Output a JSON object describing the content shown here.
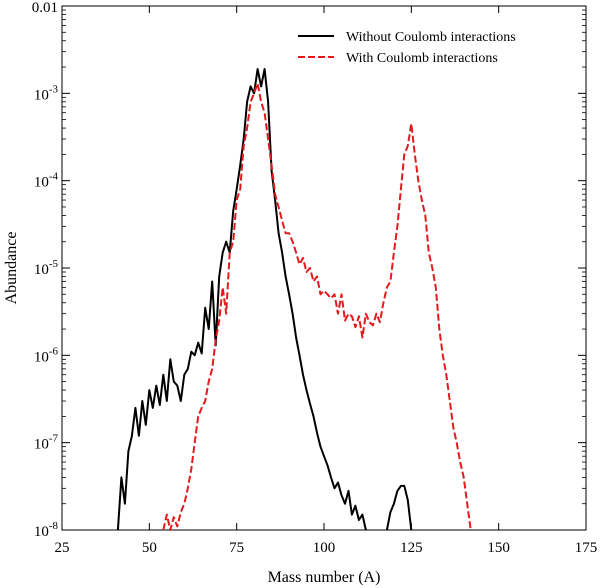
{
  "chart_data": {
    "type": "line",
    "title": "",
    "xlabel": "Mass number (A)",
    "ylabel": "Abundance",
    "xlim": [
      25,
      175
    ],
    "ylim": [
      1e-08,
      0.01
    ],
    "yscale": "log",
    "grid": false,
    "legend_position": "top-right",
    "x_ticks": [
      25,
      50,
      75,
      100,
      125,
      150,
      175
    ],
    "x_tick_labels": [
      "25",
      "50",
      "75",
      "100",
      "125",
      "150",
      "175"
    ],
    "y_ticks": [
      1e-08,
      1e-07,
      1e-06,
      1e-05,
      0.0001,
      0.001,
      0.01
    ],
    "y_tick_labels": [
      {
        "base": "10",
        "exp": "-8"
      },
      {
        "base": "10",
        "exp": "-7"
      },
      {
        "base": "10",
        "exp": "-6"
      },
      {
        "base": "10",
        "exp": "-5"
      },
      {
        "base": "10",
        "exp": "-4"
      },
      {
        "base": "10",
        "exp": "-3"
      },
      {
        "base": "0.01",
        "exp": ""
      }
    ],
    "series": [
      {
        "name": "Without Coulomb interactions",
        "color": "#000000",
        "dash": "solid",
        "x": [
          41,
          42,
          43,
          44,
          45,
          46,
          47,
          48,
          49,
          50,
          51,
          52,
          53,
          54,
          55,
          56,
          57,
          58,
          59,
          60,
          61,
          62,
          63,
          64,
          65,
          66,
          67,
          68,
          69,
          70,
          71,
          72,
          73,
          74,
          75,
          76,
          77,
          78,
          79,
          80,
          81,
          82,
          83,
          84,
          85,
          86,
          87,
          88,
          89,
          90,
          91,
          92,
          93,
          94,
          95,
          96,
          97,
          98,
          99,
          100,
          101,
          102,
          103,
          104,
          105,
          106,
          107,
          108,
          109,
          110,
          111,
          112
        ],
        "y": [
          1e-08,
          4e-08,
          2e-08,
          8e-08,
          1.2e-07,
          2.5e-07,
          1.2e-07,
          3e-07,
          1.6e-07,
          4e-07,
          2.5e-07,
          4.5e-07,
          2.7e-07,
          6e-07,
          3e-07,
          9e-07,
          5e-07,
          4.5e-07,
          3e-07,
          6e-07,
          7e-07,
          1.1e-06,
          1e-06,
          1.4e-06,
          1.05e-06,
          3.5e-06,
          2e-06,
          7e-06,
          1.3e-06,
          8e-06,
          1.5e-05,
          2e-05,
          1.5e-05,
          4.5e-05,
          8e-05,
          0.00015,
          0.0003,
          0.0008,
          0.0012,
          0.001,
          0.0019,
          0.0012,
          0.0019,
          0.0008,
          0.00013,
          6e-05,
          2.5e-05,
          1.5e-05,
          8e-06,
          5e-06,
          3e-06,
          1.6e-06,
          1e-06,
          6e-07,
          4e-07,
          2.8e-07,
          2e-07,
          1.3e-07,
          9e-08,
          7e-08,
          5.5e-08,
          4e-08,
          3e-08,
          3.5e-08,
          2.5e-08,
          2e-08,
          2.8e-08,
          1.5e-08,
          1.9e-08,
          1.3e-08,
          1.5e-08,
          1e-08
        ]
      },
      {
        "name": "",
        "color": "#000000",
        "dash": "solid",
        "x": [
          118,
          119,
          120,
          121,
          122,
          123,
          124,
          125
        ],
        "y": [
          1e-08,
          1.6e-08,
          2e-08,
          2.8e-08,
          3.2e-08,
          3.2e-08,
          2.2e-08,
          1e-08
        ]
      },
      {
        "name": "With Coulomb interactions",
        "color": "#e31a1c",
        "dash": "dashed",
        "x": [
          54,
          55,
          56,
          57,
          58,
          59,
          60,
          61,
          62,
          63,
          64,
          65,
          66,
          67,
          68,
          69,
          70,
          71,
          72,
          73,
          74,
          75,
          76,
          77,
          78,
          79,
          80,
          81,
          82,
          83,
          84,
          85,
          86,
          87,
          88,
          89,
          90,
          91,
          92,
          93,
          94,
          95,
          96,
          97,
          98,
          99,
          100,
          101,
          102,
          103,
          104,
          105,
          106,
          107,
          108,
          109,
          110,
          111,
          112,
          113,
          114,
          115,
          116,
          117,
          118,
          119,
          120,
          121,
          122,
          123,
          124,
          125,
          126,
          127,
          128,
          129,
          130,
          131,
          132,
          133,
          134,
          135,
          136,
          137,
          138,
          139,
          140,
          141,
          142
        ],
        "y": [
          1e-08,
          1.5e-08,
          1e-08,
          1.4e-08,
          1.1e-08,
          1.6e-08,
          2e-08,
          3e-08,
          5e-08,
          1e-07,
          2e-07,
          2.5e-07,
          3e-07,
          5e-07,
          7e-07,
          1.5e-06,
          2.5e-06,
          6e-06,
          3e-06,
          1.5e-05,
          2e-05,
          6e-05,
          8e-05,
          0.00025,
          0.0004,
          0.0008,
          0.001,
          0.0013,
          0.0008,
          0.0006,
          0.0003,
          0.00015,
          7e-05,
          5e-05,
          3.5e-05,
          2.5e-05,
          2.5e-05,
          2e-05,
          1.5e-05,
          1.1e-05,
          1.3e-05,
          9e-06,
          1e-05,
          7e-06,
          8e-06,
          5e-06,
          5.5e-06,
          5e-06,
          4.5e-06,
          5e-06,
          3e-06,
          5e-06,
          2.5e-06,
          3e-06,
          2.8e-06,
          2.1e-06,
          2.8e-06,
          1.6e-06,
          3e-06,
          2.4e-06,
          2.2e-06,
          3e-06,
          2.4e-06,
          4e-06,
          6e-06,
          7e-06,
          1.5e-05,
          3e-05,
          8e-05,
          0.0002,
          0.00025,
          0.00045,
          0.0002,
          0.0001,
          6e-05,
          4e-05,
          1.5e-05,
          1e-05,
          6e-06,
          2e-06,
          1e-06,
          6e-07,
          3e-07,
          1.5e-07,
          1e-07,
          6e-08,
          4e-08,
          2e-08,
          1e-08
        ]
      }
    ],
    "legend": [
      {
        "label": "Without Coulomb interactions",
        "color": "#000000",
        "dash": "solid"
      },
      {
        "label": "With Coulomb interactions",
        "color": "#e31a1c",
        "dash": "dashed"
      }
    ]
  }
}
